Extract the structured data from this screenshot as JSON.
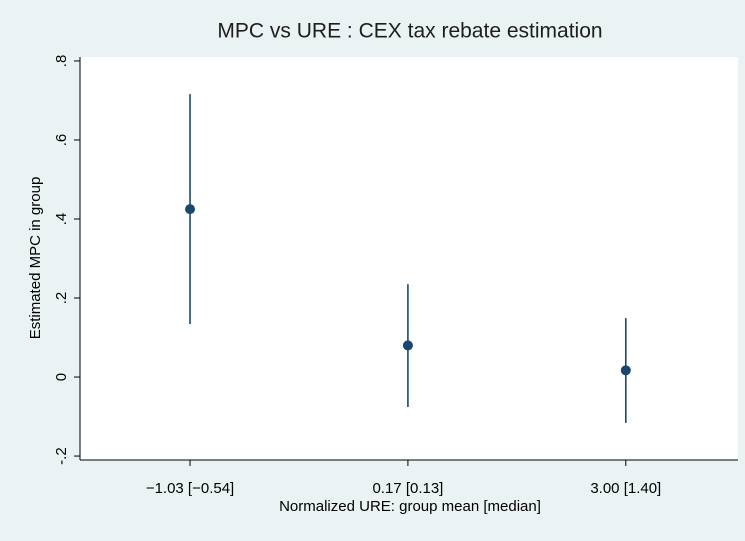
{
  "chart_data": {
    "type": "errorbar",
    "title": "MPC vs URE : CEX tax rebate estimation",
    "x_label": "Normalized URE: group mean [median]",
    "y_label": "Estimated MPC in group",
    "categories": [
      "−1.03 [−0.54]",
      "0.17 [0.13]",
      "3.00 [1.40]"
    ],
    "series": [
      {
        "color": "#1a476f",
        "values": [
          0.425,
          0.08,
          0.017
        ],
        "lower": [
          0.134,
          -0.076,
          -0.116
        ],
        "upper": [
          0.716,
          0.235,
          0.149
        ]
      }
    ],
    "ylim": [
      -0.21,
      0.81
    ],
    "yticks": [
      {
        "value": -0.2,
        "label": "-.2"
      },
      0,
      {
        "value": 0.2,
        "label": ".2"
      },
      {
        "value": 0.4,
        "label": ".4"
      },
      {
        "value": 0.6,
        "label": ".6"
      },
      {
        "value": 0.8,
        "label": ".8"
      }
    ],
    "grid": false
  }
}
